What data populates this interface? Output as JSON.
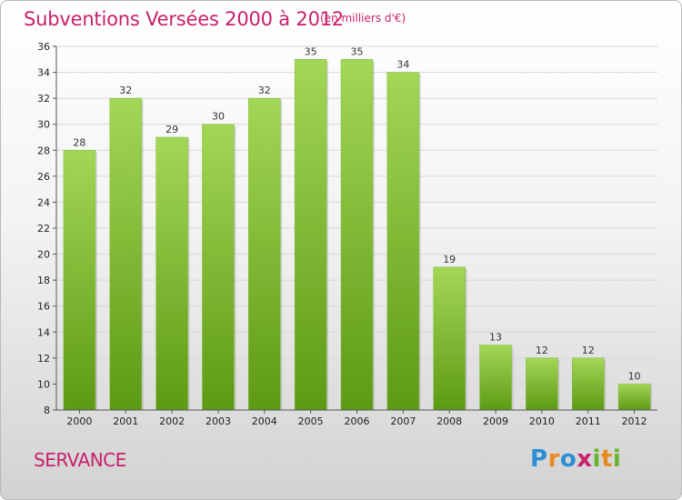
{
  "title": "Subventions Versées 2000 à 2012",
  "unit": "(en milliers d'€)",
  "commune": "SERVANCE",
  "logo": {
    "letters": [
      "P",
      "r",
      "o",
      "x",
      "i",
      "t",
      "i"
    ],
    "colors": [
      "#2a8fd6",
      "#e8891d",
      "#2a8fd6",
      "#c8206a",
      "#69b42e",
      "#e8891d",
      "#69b42e"
    ]
  },
  "colors": {
    "bar_light": "#a3d756",
    "bar_dark": "#5d9a14",
    "title": "#c8206a"
  },
  "chart_data": {
    "type": "bar",
    "title": "Subventions Versées 2000 à 2012",
    "subtitle": "(en milliers d'€)",
    "xlabel": "",
    "ylabel": "",
    "categories": [
      "2000",
      "2001",
      "2002",
      "2003",
      "2004",
      "2005",
      "2006",
      "2007",
      "2008",
      "2009",
      "2010",
      "2011",
      "2012"
    ],
    "values": [
      28,
      32,
      29,
      30,
      32,
      35,
      35,
      34,
      19,
      13,
      12,
      12,
      10
    ],
    "ylim": [
      8,
      36
    ],
    "yticks": [
      8,
      10,
      12,
      14,
      16,
      18,
      20,
      22,
      24,
      26,
      28,
      30,
      32,
      34,
      36
    ],
    "grid": true,
    "legend": "none"
  }
}
